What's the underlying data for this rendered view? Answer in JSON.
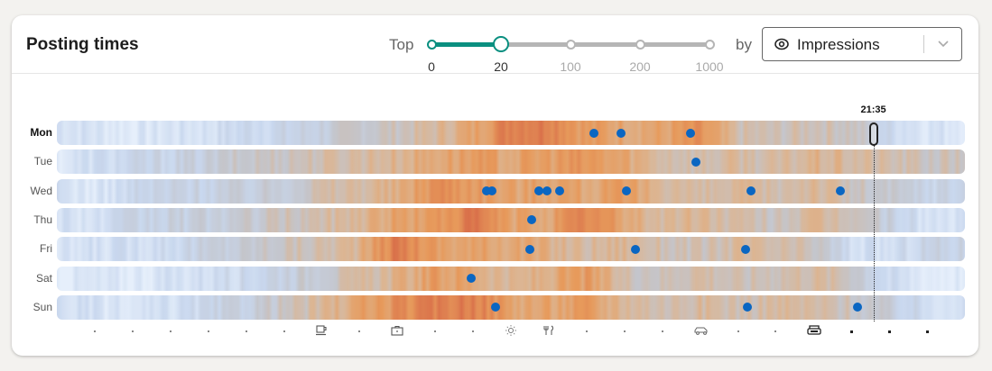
{
  "card": {
    "title": "Posting times",
    "top_label": "Top",
    "by_label": "by",
    "slider": {
      "stops": [
        "0",
        "20",
        "100",
        "200",
        "1000"
      ],
      "selected_index": 1
    },
    "metric_select": {
      "value": "Impressions",
      "icon": "eye-icon"
    }
  },
  "colors": {
    "accent": "#0a8f80",
    "dot": "#0a66c2",
    "cold": "#d3e2f7",
    "neutral": "#c4c4c8",
    "warm": "#e79a5b",
    "hot": "#da7445"
  },
  "chart_data": {
    "type": "heatmap",
    "title": "Posting times",
    "x_unit": "hour of day",
    "xlim": [
      0,
      24
    ],
    "rows": [
      "Mon",
      "Tue",
      "Wed",
      "Thu",
      "Fri",
      "Sat",
      "Sun"
    ],
    "highlighted_row": "Mon",
    "current_time_marker": {
      "label": "21:35",
      "hour": 21.58
    },
    "posts": [
      {
        "day": "Mon",
        "hours": [
          14.2,
          14.9,
          16.75
        ]
      },
      {
        "day": "Tue",
        "hours": [
          16.9
        ]
      },
      {
        "day": "Wed",
        "hours": [
          11.35,
          11.5,
          12.75,
          12.95,
          13.3,
          15.05,
          18.35,
          20.7
        ]
      },
      {
        "day": "Thu",
        "hours": [
          12.55
        ]
      },
      {
        "day": "Fri",
        "hours": [
          12.5,
          15.3,
          18.2
        ]
      },
      {
        "day": "Sat",
        "hours": [
          10.95
        ]
      },
      {
        "day": "Sun",
        "hours": [
          11.6,
          18.25,
          21.15
        ]
      }
    ],
    "intensity_profile": [
      {
        "day": "Mon",
        "values": [
          0.15,
          0.1,
          0.05,
          0.1,
          0.12,
          0.2,
          0.22,
          0.3,
          0.4,
          0.45,
          0.55,
          0.7,
          0.95,
          0.95,
          0.75,
          0.72,
          0.7,
          0.8,
          0.5,
          0.45,
          0.5,
          0.45,
          0.2,
          0.1
        ]
      },
      {
        "day": "Tue",
        "values": [
          0.05,
          0.15,
          0.2,
          0.25,
          0.3,
          0.4,
          0.45,
          0.5,
          0.55,
          0.6,
          0.7,
          0.75,
          0.7,
          0.75,
          0.78,
          0.7,
          0.55,
          0.5,
          0.55,
          0.5,
          0.6,
          0.55,
          0.5,
          0.45
        ]
      },
      {
        "day": "Wed",
        "values": [
          0.15,
          0.05,
          0.2,
          0.25,
          0.28,
          0.3,
          0.35,
          0.5,
          0.55,
          0.62,
          0.85,
          0.8,
          0.7,
          0.75,
          0.7,
          0.72,
          0.6,
          0.5,
          0.55,
          0.5,
          0.6,
          0.45,
          0.35,
          0.25
        ]
      },
      {
        "day": "Thu",
        "values": [
          0.15,
          0.1,
          0.22,
          0.28,
          0.3,
          0.35,
          0.45,
          0.5,
          0.6,
          0.72,
          0.75,
          0.95,
          0.7,
          0.72,
          0.88,
          0.7,
          0.55,
          0.6,
          0.5,
          0.45,
          0.55,
          0.5,
          0.3,
          0.1
        ]
      },
      {
        "day": "Fri",
        "values": [
          0.05,
          0.12,
          0.15,
          0.2,
          0.28,
          0.35,
          0.45,
          0.5,
          0.6,
          0.95,
          0.75,
          0.7,
          0.72,
          0.62,
          0.55,
          0.6,
          0.5,
          0.45,
          0.55,
          0.5,
          0.45,
          0.15,
          0.12,
          0.25
        ]
      },
      {
        "day": "Sat",
        "values": [
          0.05,
          0.05,
          0.05,
          0.1,
          0.15,
          0.2,
          0.3,
          0.4,
          0.5,
          0.6,
          0.75,
          0.7,
          0.55,
          0.65,
          0.75,
          0.5,
          0.45,
          0.55,
          0.45,
          0.5,
          0.55,
          0.45,
          0.15,
          0.05
        ]
      },
      {
        "day": "Sun",
        "values": [
          0.15,
          0.1,
          0.05,
          0.12,
          0.2,
          0.3,
          0.42,
          0.55,
          0.7,
          0.82,
          0.9,
          0.95,
          0.72,
          0.7,
          0.75,
          0.6,
          0.5,
          0.55,
          0.5,
          0.55,
          0.52,
          0.45,
          0.3,
          0.15
        ]
      }
    ],
    "x_axis_icons": [
      {
        "hour": 7,
        "icon": "coffee-icon"
      },
      {
        "hour": 9,
        "icon": "briefcase-icon"
      },
      {
        "hour": 12,
        "icon": "sun-icon"
      },
      {
        "hour": 13,
        "icon": "fork-knife-icon"
      },
      {
        "hour": 17,
        "icon": "car-icon"
      },
      {
        "hour": 20,
        "icon": "sofa-icon"
      }
    ],
    "legend": "none"
  }
}
